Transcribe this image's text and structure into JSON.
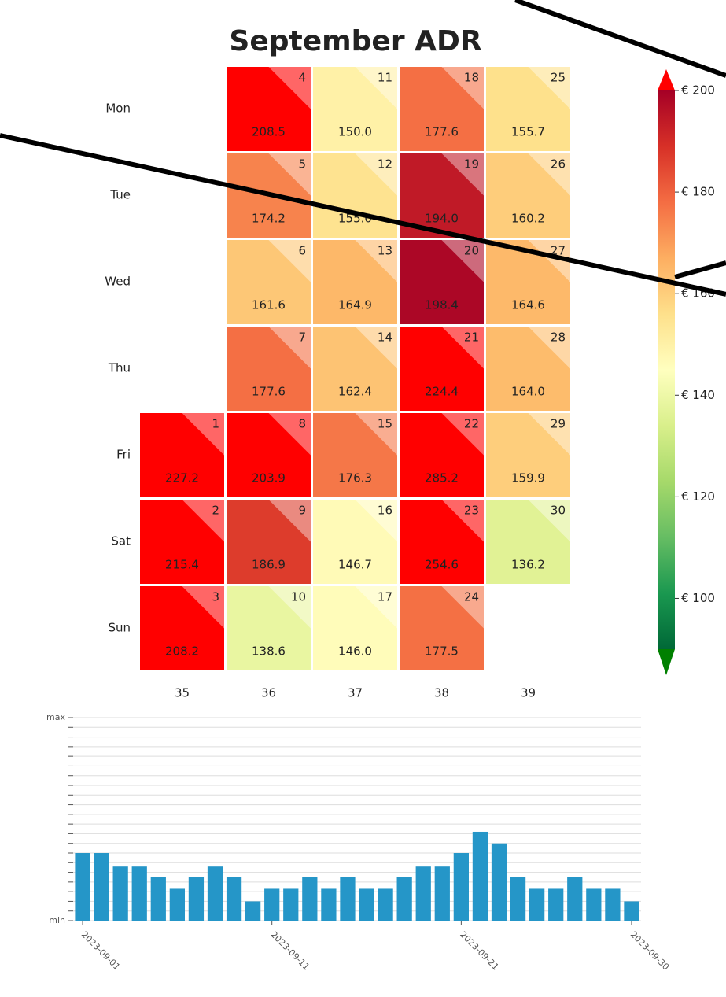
{
  "chart_data": [
    {
      "type": "calendar-heatmap",
      "title": "September ADR",
      "rows": [
        "Mon",
        "Tue",
        "Wed",
        "Thu",
        "Fri",
        "Sat",
        "Sun"
      ],
      "columns": [
        35,
        36,
        37,
        38,
        39
      ],
      "cells": [
        {
          "day": 1,
          "weekday": "Fri",
          "week": 35,
          "value": 227.2
        },
        {
          "day": 2,
          "weekday": "Sat",
          "week": 35,
          "value": 215.4
        },
        {
          "day": 3,
          "weekday": "Sun",
          "week": 35,
          "value": 208.2
        },
        {
          "day": 4,
          "weekday": "Mon",
          "week": 36,
          "value": 208.5
        },
        {
          "day": 5,
          "weekday": "Tue",
          "week": 36,
          "value": 174.2
        },
        {
          "day": 6,
          "weekday": "Wed",
          "week": 36,
          "value": 161.6
        },
        {
          "day": 7,
          "weekday": "Thu",
          "week": 36,
          "value": 177.6
        },
        {
          "day": 8,
          "weekday": "Fri",
          "week": 36,
          "value": 203.9
        },
        {
          "day": 9,
          "weekday": "Sat",
          "week": 36,
          "value": 186.9
        },
        {
          "day": 10,
          "weekday": "Sun",
          "week": 36,
          "value": 138.6
        },
        {
          "day": 11,
          "weekday": "Mon",
          "week": 37,
          "value": 150,
          "value_label": "150.0"
        },
        {
          "day": 12,
          "weekday": "Tue",
          "week": 37,
          "value": 155,
          "value_label": "155.0"
        },
        {
          "day": 13,
          "weekday": "Wed",
          "week": 37,
          "value": 164.9
        },
        {
          "day": 14,
          "weekday": "Thu",
          "week": 37,
          "value": 162.4
        },
        {
          "day": 15,
          "weekday": "Fri",
          "week": 37,
          "value": 176.3
        },
        {
          "day": 16,
          "weekday": "Sat",
          "week": 37,
          "value": 146.7
        },
        {
          "day": 17,
          "weekday": "Sun",
          "week": 37,
          "value": 146,
          "value_label": "146.0"
        },
        {
          "day": 18,
          "weekday": "Mon",
          "week": 38,
          "value": 177.6
        },
        {
          "day": 19,
          "weekday": "Tue",
          "week": 38,
          "value": 194,
          "value_label": "194.0"
        },
        {
          "day": 20,
          "weekday": "Wed",
          "week": 38,
          "value": 198.4
        },
        {
          "day": 21,
          "weekday": "Thu",
          "week": 38,
          "value": 224.4
        },
        {
          "day": 22,
          "weekday": "Fri",
          "week": 38,
          "value": 285.2
        },
        {
          "day": 23,
          "weekday": "Sat",
          "week": 38,
          "value": 254.6
        },
        {
          "day": 24,
          "weekday": "Sun",
          "week": 38,
          "value": 177.5
        },
        {
          "day": 25,
          "weekday": "Mon",
          "week": 39,
          "value": 155.7
        },
        {
          "day": 26,
          "weekday": "Tue",
          "week": 39,
          "value": 160.2
        },
        {
          "day": 27,
          "weekday": "Wed",
          "week": 39,
          "value": 164.6
        },
        {
          "day": 28,
          "weekday": "Thu",
          "week": 39,
          "value": 164,
          "value_label": "164.0"
        },
        {
          "day": 29,
          "weekday": "Fri",
          "week": 39,
          "value": 159.9
        },
        {
          "day": 30,
          "weekday": "Sat",
          "week": 39,
          "value": 136.2
        }
      ],
      "colormap": [
        "#006837",
        "#1a9850",
        "#66bd63",
        "#a6d96a",
        "#d9ef8b",
        "#ffffbf",
        "#fee08b",
        "#fdae61",
        "#f46d43",
        "#d73027",
        "#a50026"
      ],
      "over_color": "#ff0000",
      "under_color": "#008000",
      "clim": [
        90,
        200
      ],
      "cticks": [
        {
          "value": 100,
          "label": "€ 100"
        },
        {
          "value": 120,
          "label": "€ 120"
        },
        {
          "value": 140,
          "label": "€ 140"
        },
        {
          "value": 160,
          "label": "€ 160"
        },
        {
          "value": 180,
          "label": "€ 180"
        },
        {
          "value": 200,
          "label": "€ 200"
        }
      ]
    },
    {
      "type": "bar",
      "color": "#2596c8",
      "x": [
        1,
        2,
        3,
        4,
        5,
        6,
        7,
        8,
        9,
        10,
        11,
        12,
        13,
        14,
        15,
        16,
        17,
        18,
        19,
        20,
        21,
        22,
        23,
        24,
        25,
        26,
        27,
        28,
        29,
        30
      ],
      "values": [
        7,
        7,
        5.6,
        5.6,
        4.5,
        3.3,
        4.5,
        5.6,
        4.5,
        2,
        3.3,
        3.3,
        4.5,
        3.3,
        4.5,
        3.3,
        3.3,
        4.5,
        5.6,
        5.6,
        7,
        9.2,
        8,
        4.5,
        3.3,
        3.3,
        4.5,
        3.3,
        3.3,
        2
      ],
      "xlim": [
        0.5,
        30.5
      ],
      "xticks": [
        {
          "value": 1,
          "label": "2023-09-01"
        },
        {
          "value": 11,
          "label": "2023-09-11"
        },
        {
          "value": 21,
          "label": "2023-09-21"
        },
        {
          "value": 30,
          "label": "2023-09-30"
        }
      ],
      "ylim": [
        0,
        21
      ],
      "yticks": [
        {
          "value": 0,
          "label": "min"
        },
        {
          "value": 21,
          "label": "max"
        }
      ],
      "grid_lines": [
        1,
        2,
        3,
        4,
        5,
        6,
        7,
        8,
        9,
        10,
        11,
        12,
        13,
        14,
        15,
        16,
        17,
        18,
        19,
        20
      ]
    }
  ]
}
